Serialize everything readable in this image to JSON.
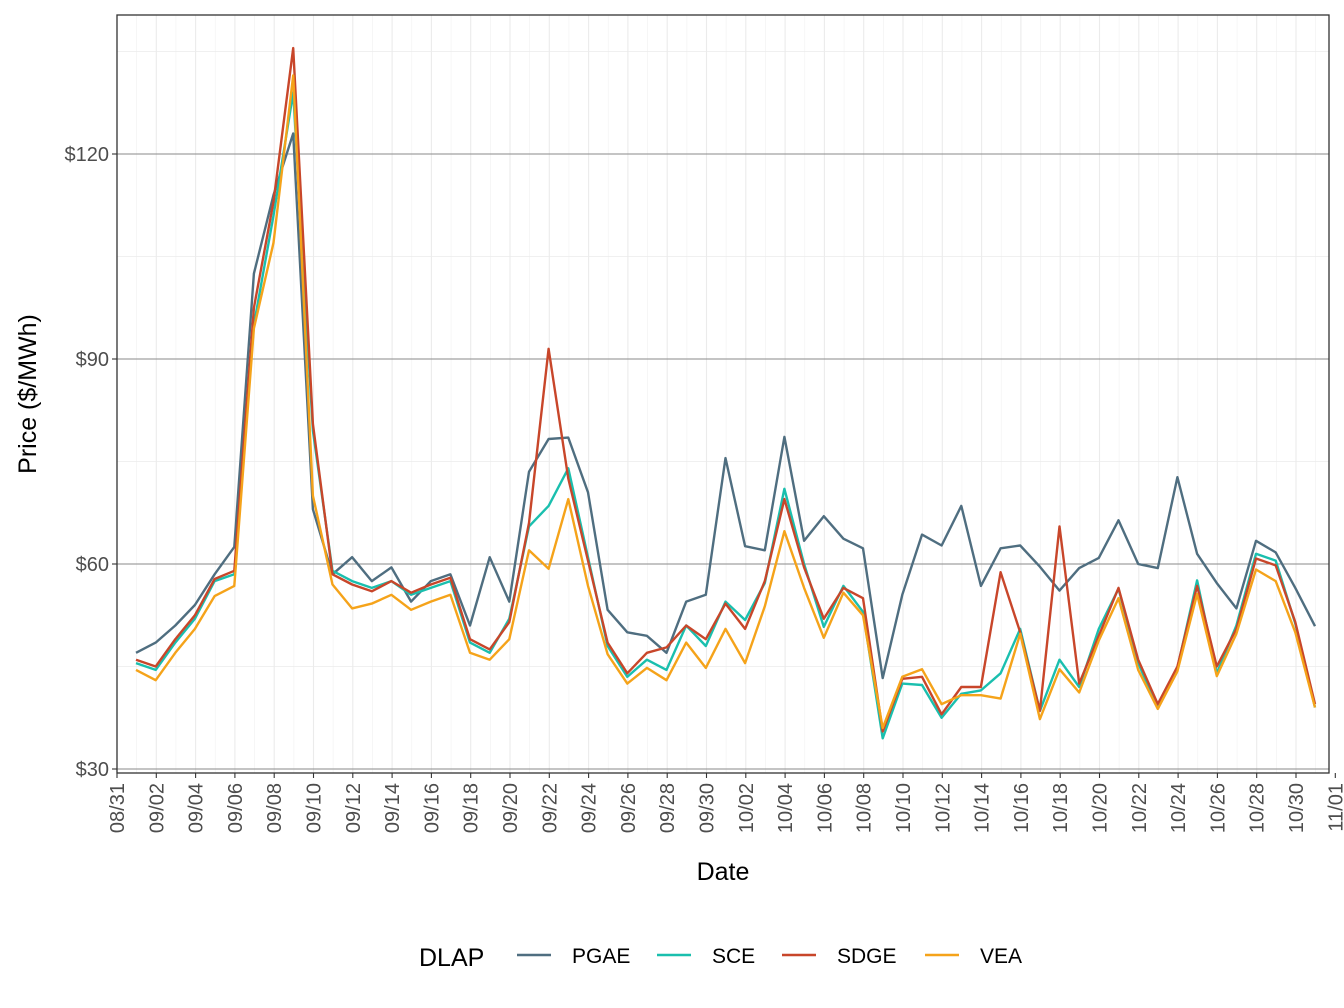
{
  "chart_data": {
    "type": "line",
    "xlabel": "Date",
    "ylabel": "Price ($/MWh)",
    "ylim": [
      30,
      140
    ],
    "y_ticks": [
      30,
      60,
      90,
      120
    ],
    "y_tick_labels": [
      "$30",
      "$60",
      "$90",
      "$120"
    ],
    "x_tick_labels": [
      "08/31",
      "09/02",
      "09/04",
      "09/06",
      "09/08",
      "09/10",
      "09/12",
      "09/14",
      "09/16",
      "09/18",
      "09/20",
      "09/22",
      "09/24",
      "09/26",
      "09/28",
      "09/30",
      "10/02",
      "10/04",
      "10/06",
      "10/08",
      "10/10",
      "10/12",
      "10/14",
      "10/16",
      "10/18",
      "10/20",
      "10/22",
      "10/24",
      "10/26",
      "10/28",
      "10/30",
      "11/01"
    ],
    "x_dates": [
      "09/01",
      "09/02",
      "09/03",
      "09/04",
      "09/05",
      "09/06",
      "09/07",
      "09/08",
      "09/09",
      "09/10",
      "09/11",
      "09/12",
      "09/13",
      "09/14",
      "09/15",
      "09/16",
      "09/17",
      "09/18",
      "09/19",
      "09/20",
      "09/21",
      "09/22",
      "09/23",
      "09/24",
      "09/25",
      "09/26",
      "09/27",
      "09/28",
      "09/29",
      "09/30",
      "10/01",
      "10/02",
      "10/03",
      "10/04",
      "10/05",
      "10/06",
      "10/07",
      "10/08",
      "10/09",
      "10/10",
      "10/11",
      "10/12",
      "10/13",
      "10/14",
      "10/15",
      "10/16",
      "10/17",
      "10/18",
      "10/19",
      "10/20",
      "10/21",
      "10/22",
      "10/23",
      "10/24",
      "10/25",
      "10/26",
      "10/27",
      "10/28",
      "10/29",
      "10/30",
      "10/31"
    ],
    "grid": true,
    "legend": {
      "title": "DLAP",
      "position": "bottom"
    },
    "series": [
      {
        "name": "PGAE",
        "color": "#4f6e80",
        "values": [
          47,
          48.5,
          51,
          54,
          58.5,
          62.5,
          102.5,
          114,
          123,
          68,
          58.5,
          61,
          57.5,
          59.5,
          54.5,
          57.5,
          58.5,
          51,
          61,
          54.5,
          73.5,
          78.3,
          78.5,
          70.5,
          53.3,
          50,
          49.5,
          47,
          54.5,
          55.5,
          75.5,
          62.6,
          62,
          78.6,
          63.4,
          67,
          63.7,
          62.3,
          43.3,
          55.5,
          64.3,
          62.7,
          68.5,
          56.8,
          62.3,
          62.7,
          59.6,
          56.1,
          59.4,
          60.9,
          66.4,
          60,
          59.4,
          72.7,
          61.5,
          57.2,
          53.5,
          63.4,
          61.7,
          56.5,
          50.9
        ]
      },
      {
        "name": "SCE",
        "color": "#1abfae",
        "values": [
          45.5,
          44.5,
          48.5,
          52,
          57.5,
          58.5,
          95,
          111,
          129,
          79.5,
          59,
          57.5,
          56.5,
          57.5,
          55.5,
          56.5,
          57.5,
          48.5,
          47,
          52,
          65.5,
          68.5,
          74,
          61,
          48,
          43.5,
          46,
          44.5,
          51,
          48,
          54.5,
          51.8,
          57.2,
          71,
          60,
          50.8,
          56.8,
          53,
          34.5,
          42.5,
          42.3,
          37.5,
          41,
          41.5,
          44,
          50.5,
          38.5,
          46,
          42,
          50.5,
          56.4,
          45.5,
          39,
          44.8,
          57.6,
          44,
          51,
          61.5,
          60.5,
          51.3,
          39
        ]
      },
      {
        "name": "SDGE",
        "color": "#c8462a",
        "values": [
          46,
          45,
          49,
          52.5,
          57.8,
          59,
          97.5,
          113,
          135.5,
          80.5,
          58.5,
          57,
          56,
          57.5,
          55.8,
          57,
          58,
          49,
          47.5,
          51.5,
          66,
          91.5,
          72.5,
          60.5,
          48.5,
          44,
          47,
          47.8,
          51,
          49,
          54.2,
          50.5,
          57.5,
          69.5,
          59.5,
          52,
          56.5,
          55,
          35.5,
          43.2,
          43.5,
          38,
          42,
          42,
          58.8,
          50,
          38.5,
          65.5,
          42.5,
          49.5,
          56.5,
          46,
          39.5,
          45,
          56.8,
          45,
          50.5,
          60.8,
          59.8,
          51.5,
          39.5
        ]
      },
      {
        "name": "VEA",
        "color": "#f5a31a",
        "values": [
          44.5,
          43,
          47,
          50.5,
          55.3,
          56.8,
          94.5,
          107,
          131.5,
          70,
          57,
          53.5,
          54.2,
          55.5,
          53.3,
          54.5,
          55.5,
          47,
          46,
          49,
          62,
          59.3,
          69.5,
          56.8,
          46.8,
          42.5,
          44.8,
          43,
          48.5,
          44.8,
          50.5,
          45.5,
          53.8,
          64.8,
          56.5,
          49.2,
          55.8,
          52.5,
          36,
          43.5,
          44.6,
          39.5,
          40.8,
          40.8,
          40.3,
          49.8,
          37.3,
          44.6,
          41.2,
          48.8,
          55,
          44.5,
          38.8,
          44.3,
          55.6,
          43.6,
          49.8,
          59.2,
          57.5,
          50,
          39
        ]
      }
    ]
  }
}
